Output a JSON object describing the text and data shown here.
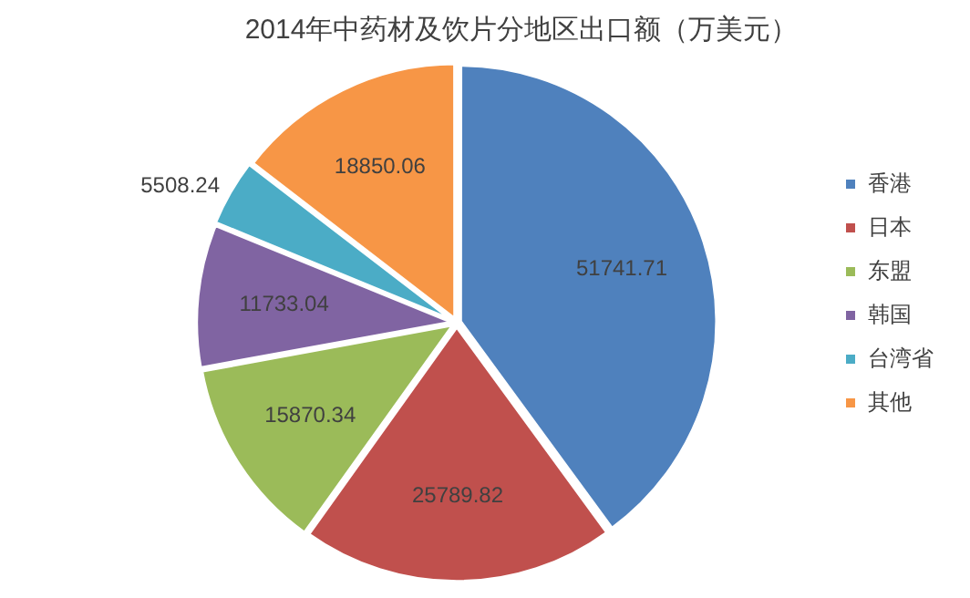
{
  "chart_data": {
    "type": "pie",
    "title": "2014年中药材及饮片分地区出口额（万美元）",
    "categories": [
      "香港",
      "日本",
      "东盟",
      "韩国",
      "台湾省",
      "其他"
    ],
    "values": [
      51741.71,
      25789.82,
      15870.34,
      11733.04,
      5508.24,
      18850.06
    ],
    "colors": [
      "#4f81bd",
      "#c0504d",
      "#9bbb59",
      "#8064a2",
      "#4bacc6",
      "#f79646"
    ],
    "data_labels": true,
    "legend": "right"
  }
}
